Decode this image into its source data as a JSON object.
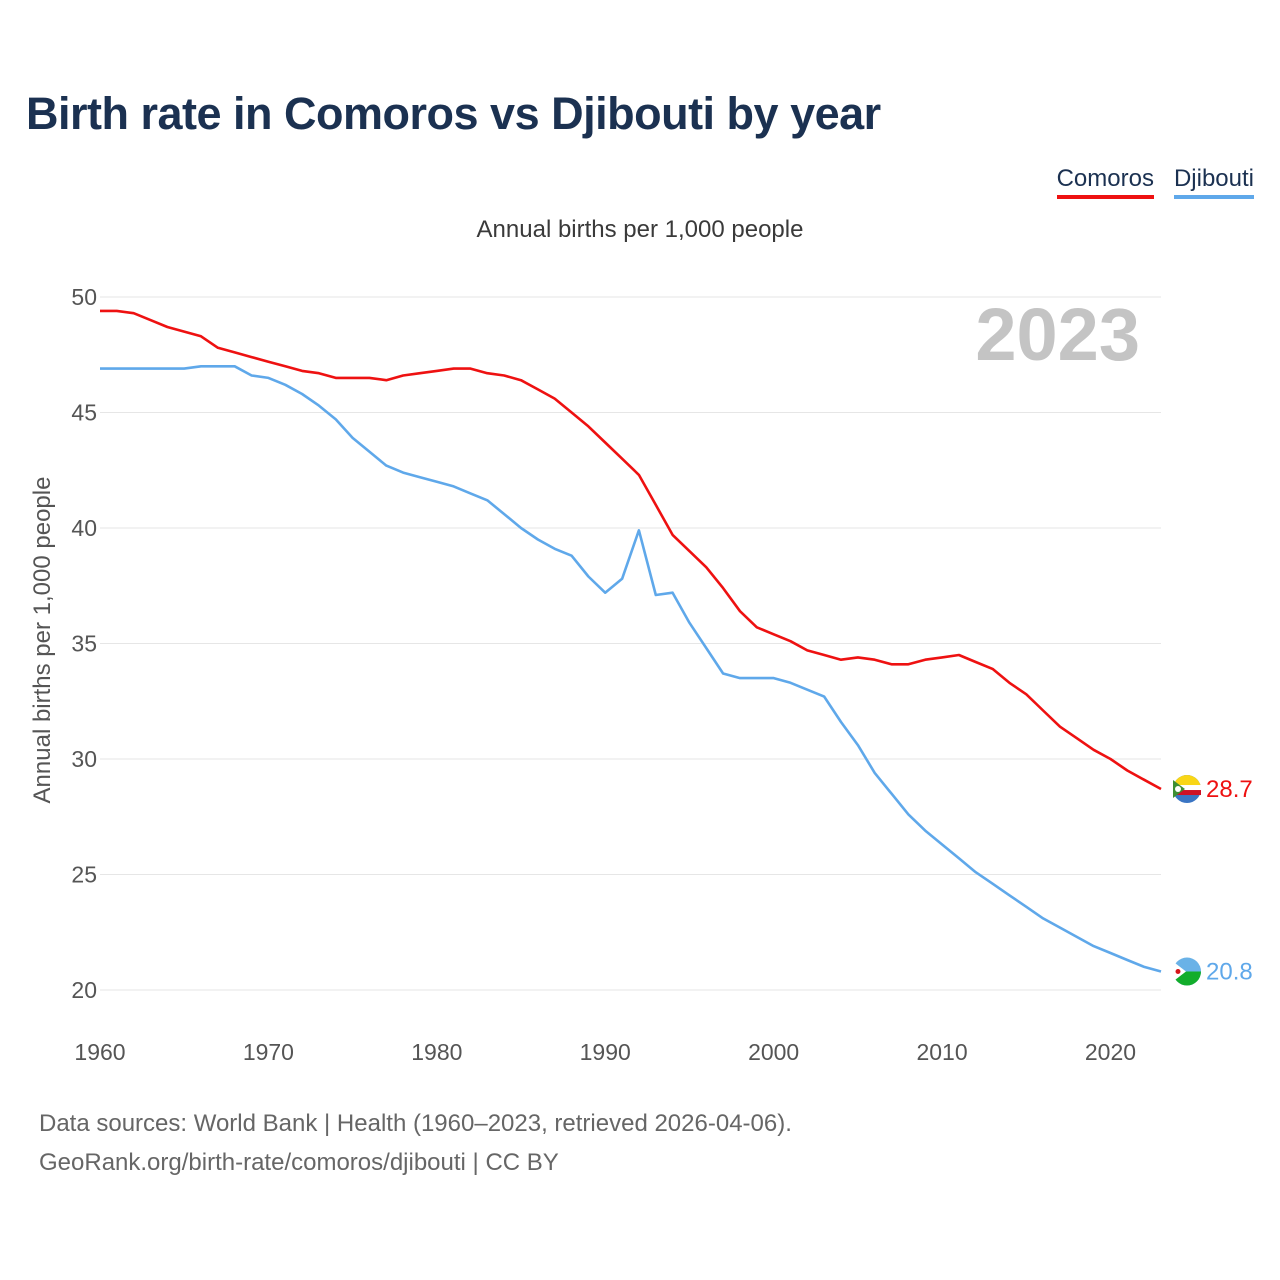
{
  "title": "Birth rate in Comoros vs Djibouti by year",
  "subtitle": "Annual births per 1,000 people",
  "legend": [
    {
      "name": "Comoros",
      "color": "#ee1111"
    },
    {
      "name": "Djibouti",
      "color": "#5fa8ea"
    }
  ],
  "footer": {
    "line1": "Data sources: World Bank | Health (1960–2023, retrieved 2026-04-06).",
    "line2": "GeoRank.org/birth-rate/comoros/djibouti | CC BY"
  },
  "chart_data": {
    "type": "line",
    "title": "Birth rate in Comoros vs Djibouti by year",
    "subtitle": "Annual births per 1,000 people",
    "xlabel": "",
    "ylabel": "Annual births per 1,000 people",
    "year_label": "2023",
    "xlim": [
      1960,
      2023
    ],
    "ylim": [
      20,
      50
    ],
    "yticks": [
      20,
      25,
      30,
      35,
      40,
      45,
      50
    ],
    "xticks": [
      1960,
      1970,
      1980,
      1990,
      2000,
      2010,
      2020
    ],
    "grid": true,
    "x": [
      1960,
      1961,
      1962,
      1963,
      1964,
      1965,
      1966,
      1967,
      1968,
      1969,
      1970,
      1971,
      1972,
      1973,
      1974,
      1975,
      1976,
      1977,
      1978,
      1979,
      1980,
      1981,
      1982,
      1983,
      1984,
      1985,
      1986,
      1987,
      1988,
      1989,
      1990,
      1991,
      1992,
      1993,
      1994,
      1995,
      1996,
      1997,
      1998,
      1999,
      2000,
      2001,
      2002,
      2003,
      2004,
      2005,
      2006,
      2007,
      2008,
      2009,
      2010,
      2011,
      2012,
      2013,
      2014,
      2015,
      2016,
      2017,
      2018,
      2019,
      2020,
      2021,
      2022,
      2023
    ],
    "series": [
      {
        "name": "Comoros",
        "color": "#ee1111",
        "end_label": "28.7",
        "values": [
          49.4,
          49.4,
          49.3,
          49.0,
          48.7,
          48.5,
          48.3,
          47.8,
          47.6,
          47.4,
          47.2,
          47.0,
          46.8,
          46.7,
          46.5,
          46.5,
          46.5,
          46.4,
          46.6,
          46.7,
          46.8,
          46.9,
          46.9,
          46.7,
          46.6,
          46.4,
          46.0,
          45.6,
          45.0,
          44.4,
          43.7,
          43.0,
          42.3,
          41.0,
          39.7,
          39.0,
          38.3,
          37.4,
          36.4,
          35.7,
          35.4,
          35.1,
          34.7,
          34.5,
          34.3,
          34.4,
          34.3,
          34.1,
          34.1,
          34.3,
          34.4,
          34.5,
          34.2,
          33.9,
          33.3,
          32.8,
          32.1,
          31.4,
          30.9,
          30.4,
          30.0,
          29.5,
          29.1,
          28.7
        ]
      },
      {
        "name": "Djibouti",
        "color": "#5fa8ea",
        "end_label": "20.8",
        "values": [
          46.9,
          46.9,
          46.9,
          46.9,
          46.9,
          46.9,
          47.0,
          47.0,
          47.0,
          46.6,
          46.5,
          46.2,
          45.8,
          45.3,
          44.7,
          43.9,
          43.3,
          42.7,
          42.4,
          42.2,
          42.0,
          41.8,
          41.5,
          41.2,
          40.6,
          40.0,
          39.5,
          39.1,
          38.8,
          37.9,
          37.2,
          37.8,
          39.9,
          37.1,
          37.2,
          35.9,
          34.8,
          33.7,
          33.5,
          33.5,
          33.5,
          33.3,
          33.0,
          32.7,
          31.6,
          30.6,
          29.4,
          28.5,
          27.6,
          26.9,
          26.3,
          25.7,
          25.1,
          24.6,
          24.1,
          23.6,
          23.1,
          22.7,
          22.3,
          21.9,
          21.6,
          21.3,
          21.0,
          20.8
        ]
      }
    ]
  }
}
